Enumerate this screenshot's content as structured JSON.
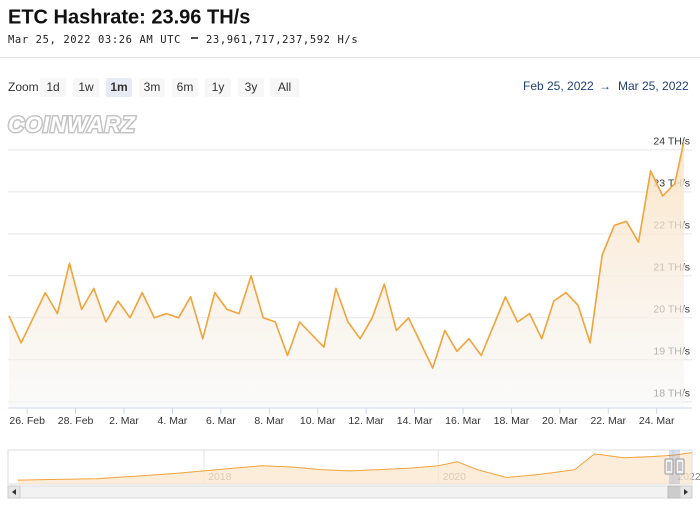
{
  "header": {
    "title": "ETC Hashrate: 23.96 TH/s",
    "timestamp": "Mar 25, 2022 03:26 AM UTC",
    "hashrate": "23,961,717,237,592 H/s"
  },
  "range_selector": {
    "zoom_label": "Zoom",
    "buttons": [
      "1d",
      "1w",
      "1m",
      "3m",
      "6m",
      "1y",
      "3y",
      "All"
    ],
    "selected": 2,
    "from": "Feb 25, 2022",
    "to": "Mar 25, 2022"
  },
  "watermark": "COINWARZ",
  "chart_data": [
    {
      "type": "line",
      "color": "#f2a33a",
      "grid": true,
      "x": [
        "2022-02-25 06:00",
        "2022-02-25 18:00",
        "2022-02-26 06:00",
        "2022-02-26 18:00",
        "2022-02-27 06:00",
        "2022-02-27 18:00",
        "2022-02-28 06:00",
        "2022-02-28 18:00",
        "2022-03-01 06:00",
        "2022-03-01 18:00",
        "2022-03-02 06:00",
        "2022-03-02 18:00",
        "2022-03-03 06:00",
        "2022-03-03 18:00",
        "2022-03-04 06:00",
        "2022-03-04 18:00",
        "2022-03-05 06:00",
        "2022-03-05 18:00",
        "2022-03-06 06:00",
        "2022-03-06 18:00",
        "2022-03-07 06:00",
        "2022-03-07 18:00",
        "2022-03-08 06:00",
        "2022-03-08 18:00",
        "2022-03-09 06:00",
        "2022-03-09 18:00",
        "2022-03-10 06:00",
        "2022-03-10 18:00",
        "2022-03-11 06:00",
        "2022-03-11 18:00",
        "2022-03-12 06:00",
        "2022-03-12 18:00",
        "2022-03-13 06:00",
        "2022-03-13 18:00",
        "2022-03-14 06:00",
        "2022-03-14 18:00",
        "2022-03-15 06:00",
        "2022-03-15 18:00",
        "2022-03-16 06:00",
        "2022-03-16 18:00",
        "2022-03-17 06:00",
        "2022-03-17 18:00",
        "2022-03-18 06:00",
        "2022-03-18 18:00",
        "2022-03-19 06:00",
        "2022-03-19 18:00",
        "2022-03-20 06:00",
        "2022-03-20 18:00",
        "2022-03-21 06:00",
        "2022-03-21 18:00",
        "2022-03-22 06:00",
        "2022-03-22 18:00",
        "2022-03-23 06:00",
        "2022-03-23 18:00",
        "2022-03-24 06:00",
        "2022-03-24 18:00",
        "2022-03-25 03:00"
      ],
      "values": [
        20.05,
        19.4,
        20.0,
        20.6,
        20.1,
        21.3,
        20.2,
        20.7,
        19.9,
        20.4,
        20.0,
        20.6,
        20.0,
        20.1,
        20.0,
        20.5,
        19.5,
        20.6,
        20.2,
        20.1,
        21.0,
        20.0,
        19.9,
        19.1,
        19.9,
        19.6,
        19.3,
        20.7,
        19.9,
        19.5,
        20.0,
        20.8,
        19.7,
        20.0,
        19.4,
        18.8,
        19.7,
        19.2,
        19.5,
        19.1,
        19.8,
        20.5,
        19.9,
        20.1,
        19.5,
        20.4,
        20.6,
        20.3,
        19.4,
        21.5,
        22.2,
        22.3,
        21.8,
        23.5,
        22.9,
        23.2,
        24.2
      ],
      "xlim": [
        "2022-02-25 05:00",
        "2022-03-25 11:00"
      ],
      "xticks": [
        {
          "value": "2022-02-26",
          "label": "26. Feb"
        },
        {
          "value": "2022-02-28",
          "label": "28. Feb"
        },
        {
          "value": "2022-03-02",
          "label": "2. Mar"
        },
        {
          "value": "2022-03-04",
          "label": "4. Mar"
        },
        {
          "value": "2022-03-06",
          "label": "6. Mar"
        },
        {
          "value": "2022-03-08",
          "label": "8. Mar"
        },
        {
          "value": "2022-03-10",
          "label": "10. Mar"
        },
        {
          "value": "2022-03-12",
          "label": "12. Mar"
        },
        {
          "value": "2022-03-14",
          "label": "14. Mar"
        },
        {
          "value": "2022-03-16",
          "label": "16. Mar"
        },
        {
          "value": "2022-03-18",
          "label": "18. Mar"
        },
        {
          "value": "2022-03-20",
          "label": "20. Mar"
        },
        {
          "value": "2022-03-22",
          "label": "22. Mar"
        },
        {
          "value": "2022-03-24",
          "label": "24. Mar"
        }
      ],
      "ylim": [
        17.85,
        24.95
      ],
      "yticks": [
        {
          "value": 18,
          "label": "18 TH/s"
        },
        {
          "value": 19,
          "label": "19 TH/s"
        },
        {
          "value": 20,
          "label": "20 TH/s"
        },
        {
          "value": 21,
          "label": "21 TH/s"
        },
        {
          "value": 22,
          "label": "22 TH/s"
        },
        {
          "value": 23,
          "label": "23 TH/s"
        },
        {
          "value": 24,
          "label": "24 TH/s"
        }
      ]
    },
    {
      "type": "area",
      "color": "#f2a33a",
      "x": [
        "2016-06",
        "2016-10",
        "2017-02",
        "2017-06",
        "2017-10",
        "2018-01",
        "2018-04",
        "2018-07",
        "2018-10",
        "2019-01",
        "2019-04",
        "2019-07",
        "2019-10",
        "2020-01",
        "2020-03",
        "2020-05",
        "2020-08",
        "2020-11",
        "2021-01",
        "2021-03",
        "2021-05",
        "2021-08",
        "2021-11",
        "2022-01",
        "2022-03"
      ],
      "values": [
        3,
        3.5,
        4,
        6,
        8,
        10,
        12,
        14,
        13,
        11,
        10,
        11,
        12,
        14,
        17,
        11,
        5,
        7,
        9,
        11,
        23,
        20,
        21,
        22,
        24
      ],
      "xlim": [
        "2016-05",
        "2022-03"
      ],
      "xticks": [
        {
          "value": "2018-01",
          "label": "2018"
        },
        {
          "value": "2020-01",
          "label": "2020"
        },
        {
          "value": "2022-01",
          "label": "2022"
        }
      ],
      "ylim": [
        0,
        26
      ]
    }
  ]
}
